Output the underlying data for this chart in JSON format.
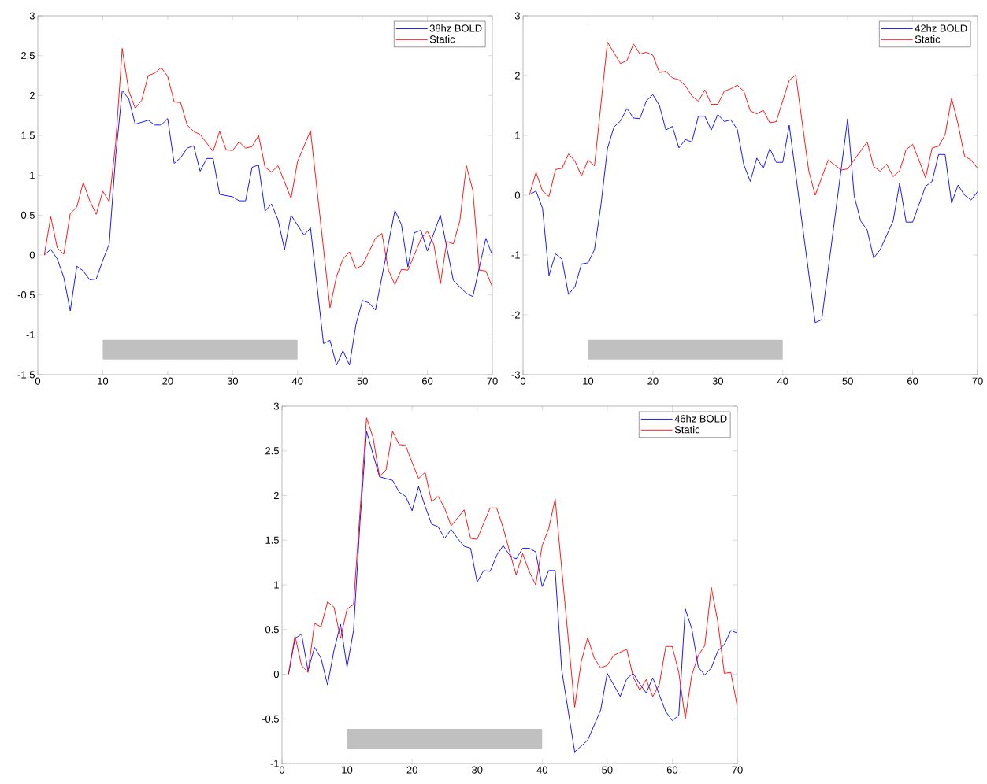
{
  "chart_data": [
    {
      "type": "line",
      "xlim": [
        0,
        70
      ],
      "ylim": [
        -1.5,
        3
      ],
      "xticks": [
        0,
        10,
        20,
        30,
        40,
        50,
        60,
        70
      ],
      "yticks": [
        -1.5,
        -1,
        -0.5,
        0,
        0.5,
        1,
        1.5,
        2,
        2.5,
        3
      ],
      "legend": "top right",
      "marker": "none",
      "line_style": "solid",
      "bands": [
        {
          "axis": "x",
          "from": 10,
          "to": 40,
          "color": "#c0c0c0"
        }
      ],
      "series": [
        {
          "name": "38hz BOLD",
          "color": "#0000ff",
          "x": [
            1,
            2,
            3,
            4,
            5,
            6,
            7,
            8,
            9,
            10,
            11,
            12,
            13,
            14,
            15,
            17,
            18,
            19,
            20,
            21,
            22,
            23,
            24,
            25,
            26,
            27,
            28,
            30,
            31,
            32,
            33,
            34,
            35,
            36,
            37,
            38,
            39,
            41,
            42,
            44,
            45,
            46,
            47,
            48,
            49,
            50,
            51,
            52,
            55,
            56,
            57,
            58,
            59,
            60,
            62,
            64,
            66,
            67,
            69,
            70
          ],
          "values": [
            0,
            0.07,
            -0.05,
            -0.28,
            -0.7,
            -0.14,
            -0.2,
            -0.31,
            -0.3,
            -0.07,
            0.14,
            1.25,
            2.06,
            1.96,
            1.64,
            1.69,
            1.63,
            1.63,
            1.71,
            1.15,
            1.22,
            1.34,
            1.37,
            1.05,
            1.21,
            1.21,
            0.76,
            0.73,
            0.68,
            0.68,
            1.1,
            1.13,
            0.55,
            0.64,
            0.44,
            0.07,
            0.5,
            0.25,
            0.34,
            -1.11,
            -1.07,
            -1.38,
            -1.2,
            -1.38,
            -0.87,
            -0.57,
            -0.6,
            -0.69,
            0.56,
            0.38,
            -0.15,
            0.28,
            0.31,
            0.05,
            0.5,
            -0.32,
            -0.48,
            -0.52,
            0.21,
            0
          ]
        },
        {
          "name": "Static",
          "color": "#ff0000",
          "x": [
            1,
            2,
            3,
            4,
            5,
            6,
            7,
            8,
            9,
            10,
            11,
            12,
            13,
            14,
            15,
            16,
            17,
            18,
            19,
            20,
            21,
            22,
            23,
            24,
            25,
            27,
            28,
            29,
            30,
            31,
            32,
            33,
            34,
            35,
            36,
            37,
            39,
            40,
            42,
            45,
            46,
            47,
            48,
            49,
            50,
            52,
            53,
            54,
            55,
            56,
            57,
            59,
            60,
            61,
            62,
            63,
            64,
            65,
            66,
            67,
            68,
            69,
            70
          ],
          "values": [
            0,
            0.48,
            0.09,
            0.01,
            0.52,
            0.6,
            0.91,
            0.68,
            0.51,
            0.8,
            0.67,
            1.41,
            2.59,
            2.06,
            1.84,
            1.94,
            2.25,
            2.28,
            2.35,
            2.24,
            1.92,
            1.91,
            1.63,
            1.55,
            1.51,
            1.3,
            1.55,
            1.32,
            1.31,
            1.42,
            1.34,
            1.36,
            1.5,
            1.1,
            1.04,
            1.12,
            0.71,
            1.17,
            1.56,
            -0.66,
            -0.27,
            -0.05,
            0.04,
            -0.17,
            -0.13,
            0.21,
            0.27,
            -0.19,
            -0.37,
            -0.18,
            -0.19,
            0.2,
            0.3,
            0.13,
            -0.36,
            0.17,
            0.14,
            0.43,
            1.12,
            0.81,
            -0.19,
            -0.2,
            -0.4
          ]
        }
      ]
    },
    {
      "type": "line",
      "xlim": [
        0,
        70
      ],
      "ylim": [
        -3,
        3
      ],
      "xticks": [
        0,
        10,
        20,
        30,
        40,
        50,
        60,
        70
      ],
      "yticks": [
        -3,
        -2,
        -1,
        0,
        1,
        2,
        3
      ],
      "legend": "top right",
      "marker": "none",
      "line_style": "solid",
      "bands": [
        {
          "axis": "x",
          "from": 10,
          "to": 40,
          "color": "#c0c0c0"
        }
      ],
      "series": [
        {
          "name": "42hz BOLD",
          "color": "#0000ff",
          "x": [
            1,
            2,
            3,
            4,
            5,
            6,
            7,
            8,
            9,
            10,
            11,
            12,
            13,
            14,
            15,
            16,
            17,
            18,
            19,
            20,
            21,
            22,
            23,
            24,
            25,
            26,
            27,
            28,
            29,
            30,
            31,
            32,
            33,
            34,
            35,
            36,
            37,
            38,
            39,
            40,
            41,
            45,
            46,
            50,
            51,
            52,
            53,
            54,
            55,
            57,
            58,
            59,
            60,
            62,
            63,
            64,
            65,
            66,
            67,
            68,
            69,
            70
          ],
          "values": [
            0.01,
            0.07,
            -0.22,
            -1.34,
            -0.98,
            -1.07,
            -1.66,
            -1.53,
            -1.15,
            -1.13,
            -0.91,
            -0.16,
            0.78,
            1.14,
            1.24,
            1.45,
            1.29,
            1.28,
            1.58,
            1.68,
            1.5,
            1.09,
            1.15,
            0.79,
            0.93,
            0.89,
            1.32,
            1.32,
            1.09,
            1.35,
            1.23,
            1.26,
            1.1,
            0.51,
            0.23,
            0.62,
            0.45,
            0.78,
            0.55,
            0.55,
            1.17,
            -2.13,
            -2.08,
            1.28,
            -0.01,
            -0.43,
            -0.58,
            -1.05,
            -0.91,
            -0.43,
            0.2,
            -0.45,
            -0.45,
            0.15,
            0.23,
            0.68,
            0.68,
            -0.13,
            0.17,
            0,
            -0.08,
            0.06
          ]
        },
        {
          "name": "Static",
          "color": "#ff0000",
          "x": [
            1,
            2,
            3,
            4,
            5,
            6,
            7,
            8,
            9,
            10,
            11,
            13,
            14,
            15,
            16,
            17,
            18,
            19,
            20,
            21,
            22,
            23,
            24,
            25,
            26,
            27,
            28,
            29,
            30,
            31,
            32,
            33,
            34,
            35,
            36,
            37,
            38,
            39,
            40,
            41,
            42,
            44,
            45,
            47,
            49,
            50,
            53,
            54,
            55,
            56,
            57,
            58,
            59,
            60,
            61,
            62,
            63,
            64,
            65,
            66,
            67,
            68,
            69,
            70
          ],
          "values": [
            0.01,
            0.38,
            0.07,
            -0.02,
            0.43,
            0.45,
            0.69,
            0.57,
            0.32,
            0.59,
            0.49,
            2.56,
            2.38,
            2.2,
            2.25,
            2.53,
            2.36,
            2.39,
            2.34,
            2.05,
            2.07,
            1.96,
            1.93,
            1.83,
            1.66,
            1.57,
            1.76,
            1.52,
            1.52,
            1.74,
            1.78,
            1.84,
            1.74,
            1.41,
            1.36,
            1.42,
            1.21,
            1.23,
            1.58,
            1.92,
            2.01,
            0.41,
            0,
            0.59,
            0.42,
            0.44,
            0.89,
            0.48,
            0.4,
            0.52,
            0.31,
            0.41,
            0.76,
            0.85,
            0.58,
            0.29,
            0.79,
            0.82,
            1.01,
            1.62,
            1.19,
            0.65,
            0.59,
            0.45
          ]
        }
      ]
    },
    {
      "type": "line",
      "xlim": [
        0,
        70
      ],
      "ylim": [
        -1,
        3
      ],
      "xticks": [
        0,
        10,
        20,
        30,
        40,
        50,
        60,
        70
      ],
      "yticks": [
        -1,
        -0.5,
        0,
        0.5,
        1,
        1.5,
        2,
        2.5,
        3
      ],
      "legend": "top right",
      "marker": "none",
      "line_style": "solid",
      "bands": [
        {
          "axis": "x",
          "from": 10,
          "to": 40,
          "color": "#c0c0c0"
        }
      ],
      "series": [
        {
          "name": "46hz BOLD",
          "color": "#0000ff",
          "x": [
            1,
            2,
            3,
            4,
            5,
            6,
            7,
            8,
            9,
            10,
            11,
            12,
            13,
            14,
            15,
            17,
            18,
            19,
            20,
            21,
            22,
            23,
            24,
            25,
            26,
            27,
            28,
            29,
            30,
            31,
            32,
            33,
            34,
            35,
            36,
            37,
            38,
            39,
            40,
            41,
            42,
            43,
            45,
            47,
            49,
            50,
            52,
            53,
            54,
            55,
            56,
            57,
            59,
            60,
            61,
            62,
            63,
            64,
            65,
            66,
            67,
            68,
            69,
            70
          ],
          "values": [
            0,
            0.4,
            0.45,
            0.04,
            0.3,
            0.18,
            -0.12,
            0.27,
            0.56,
            0.08,
            0.49,
            1.71,
            2.72,
            2.46,
            2.21,
            2.17,
            2.04,
            1.99,
            1.83,
            2.1,
            1.88,
            1.68,
            1.65,
            1.52,
            1.62,
            1.52,
            1.43,
            1.41,
            1.03,
            1.16,
            1.15,
            1.33,
            1.44,
            1.33,
            1.29,
            1.41,
            1.41,
            1.37,
            0.98,
            1.16,
            1.16,
            0.05,
            -0.87,
            -0.74,
            -0.4,
            0.01,
            -0.25,
            -0.05,
            0.01,
            -0.11,
            -0.21,
            -0.04,
            -0.42,
            -0.52,
            -0.46,
            0.73,
            0.51,
            0.08,
            -0.01,
            0.07,
            0.26,
            0.33,
            0.49,
            0.46
          ]
        },
        {
          "name": "Static",
          "color": "#ff0000",
          "x": [
            1,
            2,
            3,
            4,
            5,
            6,
            7,
            8,
            9,
            10,
            11,
            13,
            14,
            15,
            16,
            17,
            18,
            19,
            20,
            21,
            22,
            23,
            24,
            25,
            26,
            27,
            28,
            29,
            30,
            31,
            32,
            33,
            34,
            35,
            36,
            37,
            38,
            39,
            40,
            41,
            42,
            45,
            46,
            47,
            48,
            49,
            50,
            51,
            53,
            54,
            55,
            56,
            57,
            58,
            59,
            60,
            61,
            62,
            63,
            64,
            65,
            66,
            67,
            68,
            69,
            70
          ],
          "values": [
            0,
            0.43,
            0.1,
            0.02,
            0.57,
            0.53,
            0.81,
            0.75,
            0.4,
            0.73,
            0.78,
            2.87,
            2.65,
            2.21,
            2.29,
            2.72,
            2.57,
            2.56,
            2.37,
            2.19,
            2.26,
            1.93,
            1.99,
            1.86,
            1.66,
            1.75,
            1.84,
            1.52,
            1.51,
            1.69,
            1.86,
            1.86,
            1.64,
            1.37,
            1.11,
            1.35,
            1.15,
            1.0,
            1.44,
            1.63,
            1.96,
            -0.37,
            0.14,
            0.41,
            0.18,
            0.07,
            0.1,
            0.21,
            0.28,
            -0.03,
            -0.18,
            -0.06,
            -0.25,
            -0.12,
            0.31,
            0.31,
            0.02,
            -0.5,
            -0.01,
            0.21,
            0.32,
            0.97,
            0.59,
            0.01,
            0.02,
            -0.36
          ]
        }
      ]
    }
  ]
}
